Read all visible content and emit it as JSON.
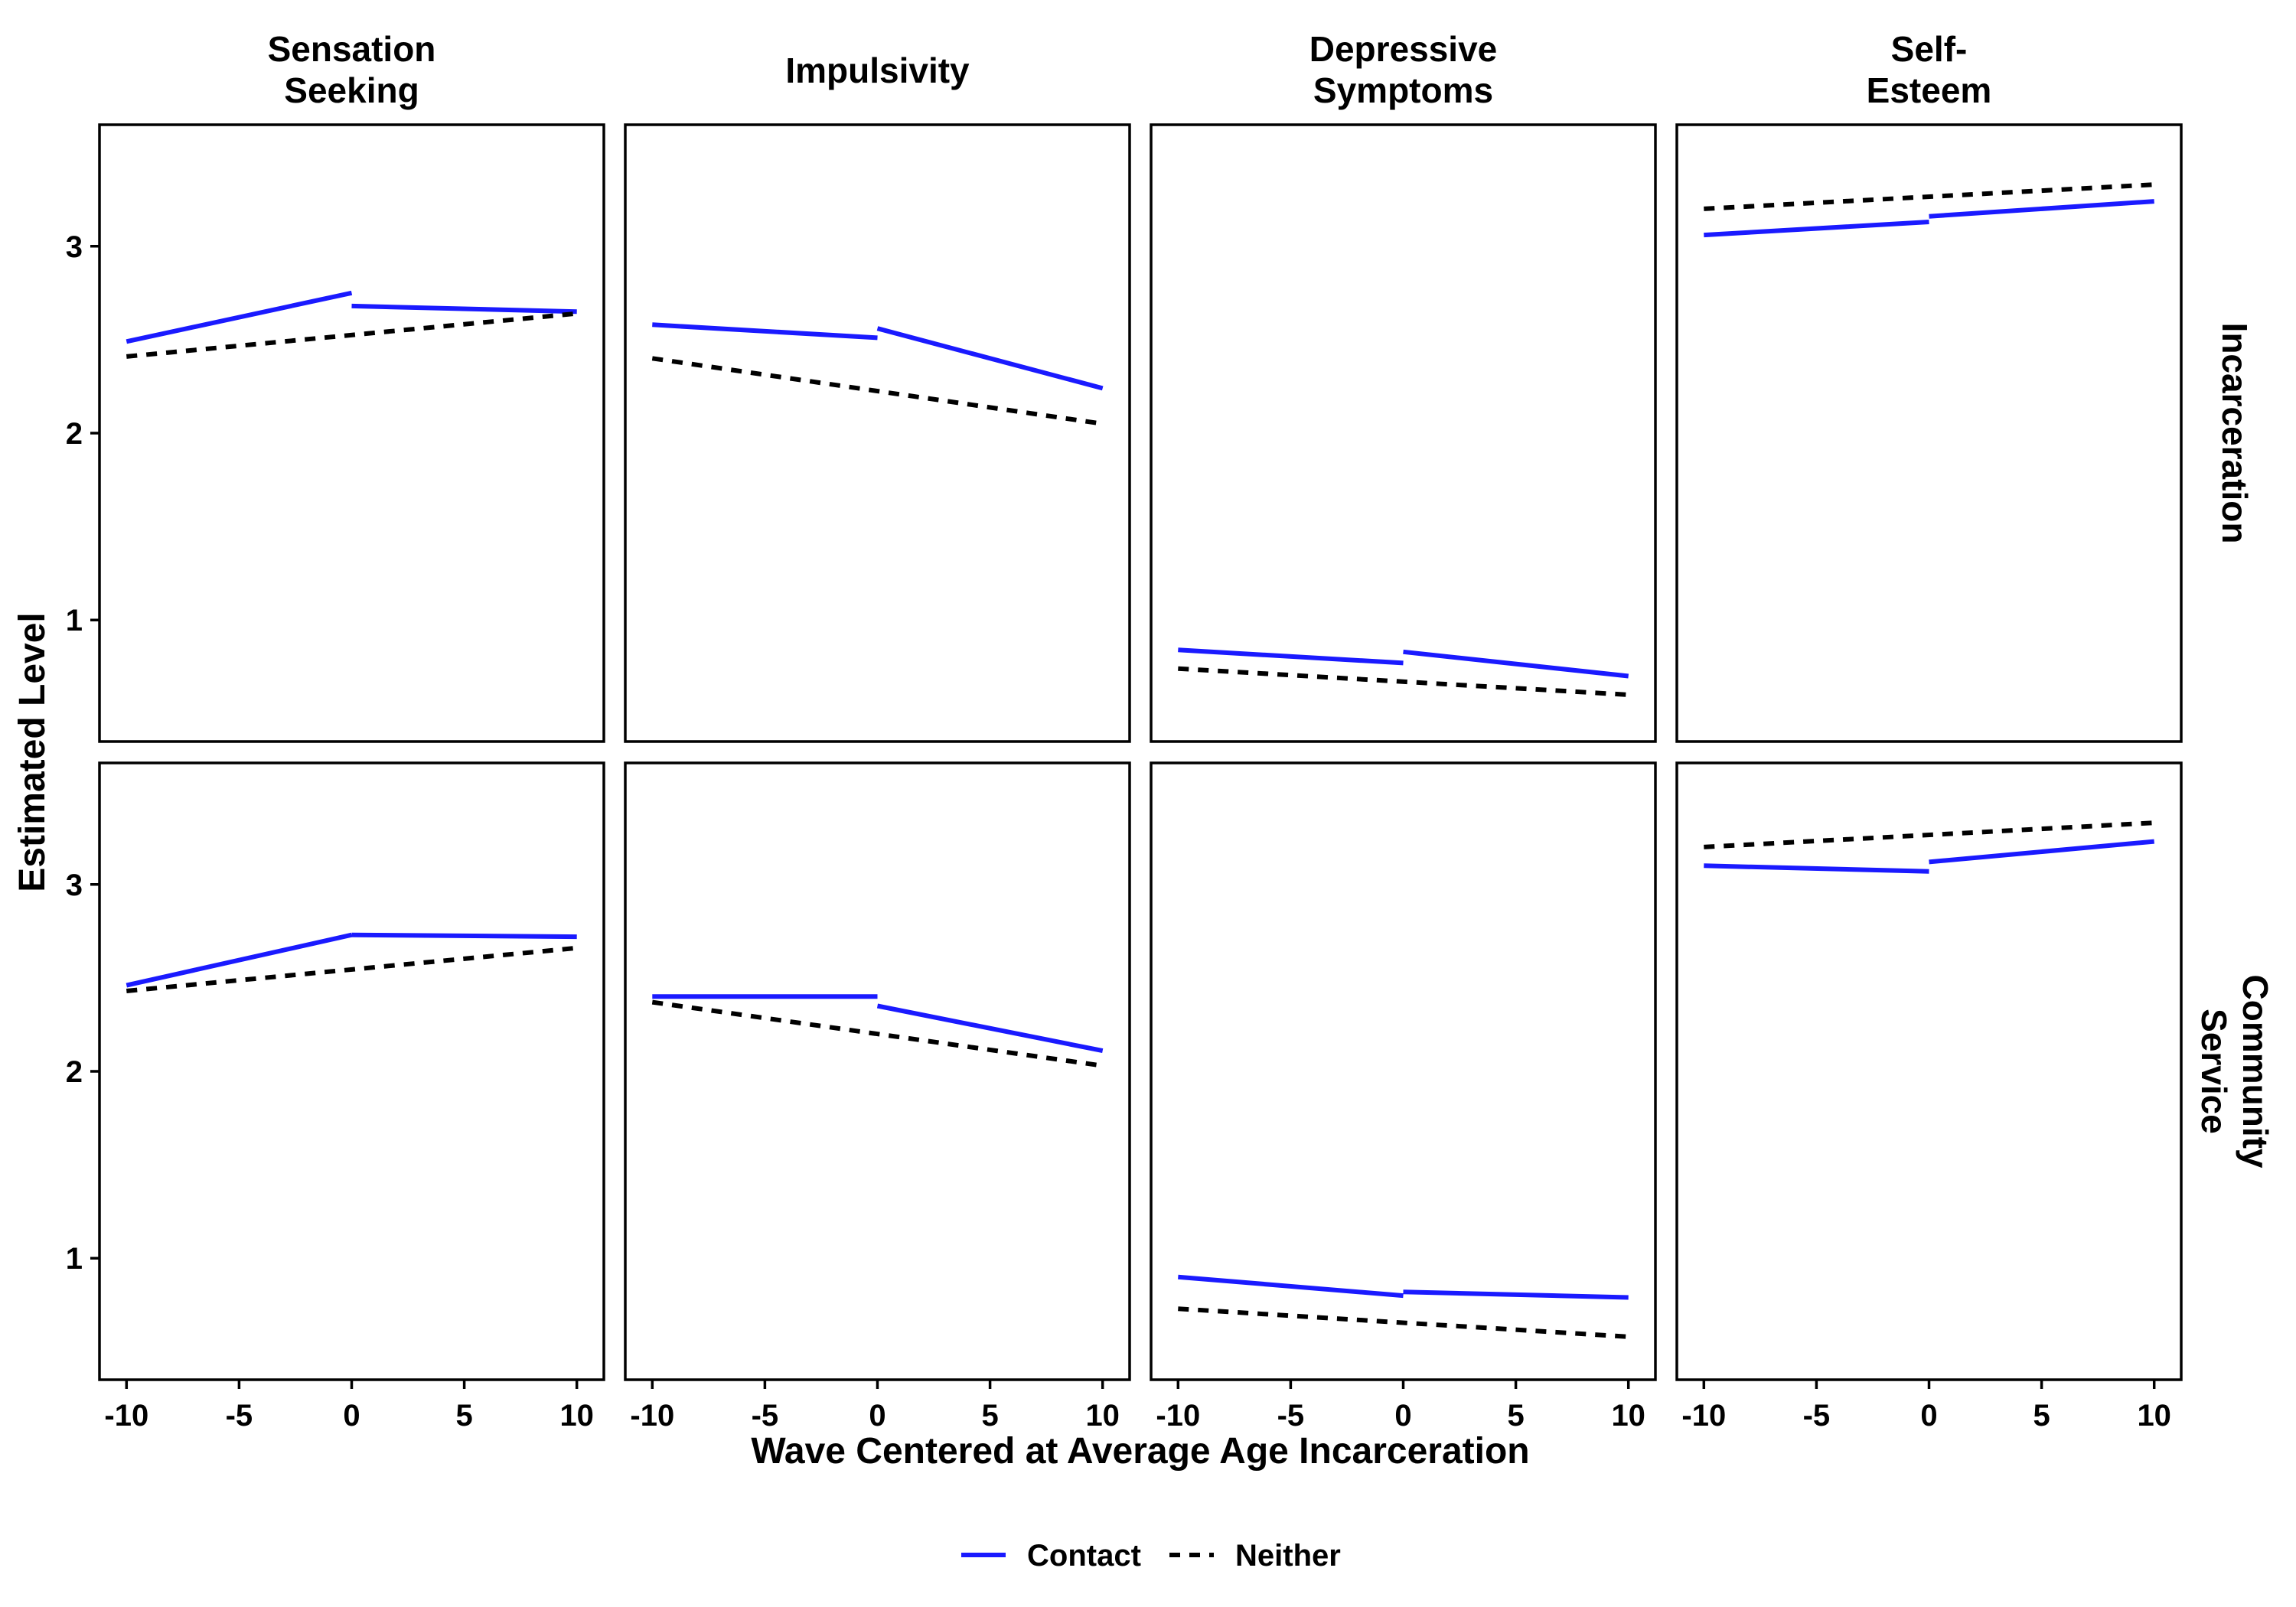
{
  "chart_data": {
    "type": "line",
    "facet_columns": [
      "Sensation\nSeeking",
      "Impulsivity",
      "Depressive\nSymptoms",
      "Self-\nEsteem"
    ],
    "facet_rows": [
      "Incarceration",
      "Community\nService"
    ],
    "xlabel": "Wave Centered at Average Age Incarceration",
    "ylabel": "Estimated Level",
    "xlim": [
      -11.2,
      11.2
    ],
    "ylim": [
      0.35,
      3.65
    ],
    "xticks": [
      -10,
      -5,
      0,
      5,
      10
    ],
    "xtick_labels": [
      "-10",
      "-5",
      "0",
      "5",
      "10"
    ],
    "yticks": [
      1,
      2,
      3
    ],
    "ytick_labels": [
      "1",
      "2",
      "3"
    ],
    "legend": {
      "position": "bottom",
      "entries": [
        {
          "label": "Contact",
          "color": "#1a1aff",
          "dash": "solid"
        },
        {
          "label": "Neither",
          "color": "#000000",
          "dash": "dashed"
        }
      ]
    },
    "grid": false,
    "panels": [
      {
        "row": 0,
        "col": 0,
        "series": [
          {
            "name": "Contact",
            "segments": [
              [
                [
                  -10,
                  2.49
                ],
                [
                  0,
                  2.75
                ]
              ],
              [
                [
                  0,
                  2.68
                ],
                [
                  10,
                  2.65
                ]
              ]
            ]
          },
          {
            "name": "Neither",
            "segments": [
              [
                [
                  -10,
                  2.41
                ],
                [
                  10,
                  2.64
                ]
              ]
            ]
          }
        ]
      },
      {
        "row": 0,
        "col": 1,
        "series": [
          {
            "name": "Contact",
            "segments": [
              [
                [
                  -10,
                  2.58
                ],
                [
                  0,
                  2.51
                ]
              ],
              [
                [
                  0,
                  2.56
                ],
                [
                  10,
                  2.24
                ]
              ]
            ]
          },
          {
            "name": "Neither",
            "segments": [
              [
                [
                  -10,
                  2.4
                ],
                [
                  10,
                  2.05
                ]
              ]
            ]
          }
        ]
      },
      {
        "row": 0,
        "col": 2,
        "series": [
          {
            "name": "Contact",
            "segments": [
              [
                [
                  -10,
                  0.84
                ],
                [
                  0,
                  0.77
                ]
              ],
              [
                [
                  0,
                  0.83
                ],
                [
                  10,
                  0.7
                ]
              ]
            ]
          },
          {
            "name": "Neither",
            "segments": [
              [
                [
                  -10,
                  0.74
                ],
                [
                  10,
                  0.6
                ]
              ]
            ]
          }
        ]
      },
      {
        "row": 0,
        "col": 3,
        "series": [
          {
            "name": "Contact",
            "segments": [
              [
                [
                  -10,
                  3.06
                ],
                [
                  0,
                  3.13
                ]
              ],
              [
                [
                  0,
                  3.16
                ],
                [
                  10,
                  3.24
                ]
              ]
            ]
          },
          {
            "name": "Neither",
            "segments": [
              [
                [
                  -10,
                  3.2
                ],
                [
                  10,
                  3.33
                ]
              ]
            ]
          }
        ]
      },
      {
        "row": 1,
        "col": 0,
        "series": [
          {
            "name": "Contact",
            "segments": [
              [
                [
                  -10,
                  2.46
                ],
                [
                  0,
                  2.73
                ]
              ],
              [
                [
                  0,
                  2.73
                ],
                [
                  10,
                  2.72
                ]
              ]
            ]
          },
          {
            "name": "Neither",
            "segments": [
              [
                [
                  -10,
                  2.43
                ],
                [
                  10,
                  2.66
                ]
              ]
            ]
          }
        ]
      },
      {
        "row": 1,
        "col": 1,
        "series": [
          {
            "name": "Contact",
            "segments": [
              [
                [
                  -10,
                  2.4
                ],
                [
                  0,
                  2.4
                ]
              ],
              [
                [
                  0,
                  2.35
                ],
                [
                  10,
                  2.11
                ]
              ]
            ]
          },
          {
            "name": "Neither",
            "segments": [
              [
                [
                  -10,
                  2.37
                ],
                [
                  10,
                  2.03
                ]
              ]
            ]
          }
        ]
      },
      {
        "row": 1,
        "col": 2,
        "series": [
          {
            "name": "Contact",
            "segments": [
              [
                [
                  -10,
                  0.9
                ],
                [
                  0,
                  0.8
                ]
              ],
              [
                [
                  0,
                  0.82
                ],
                [
                  10,
                  0.79
                ]
              ]
            ]
          },
          {
            "name": "Neither",
            "segments": [
              [
                [
                  -10,
                  0.73
                ],
                [
                  10,
                  0.58
                ]
              ]
            ]
          }
        ]
      },
      {
        "row": 1,
        "col": 3,
        "series": [
          {
            "name": "Contact",
            "segments": [
              [
                [
                  -10,
                  3.1
                ],
                [
                  0,
                  3.07
                ]
              ],
              [
                [
                  0,
                  3.12
                ],
                [
                  10,
                  3.23
                ]
              ]
            ]
          },
          {
            "name": "Neither",
            "segments": [
              [
                [
                  -10,
                  3.2
                ],
                [
                  10,
                  3.33
                ]
              ]
            ]
          }
        ]
      }
    ]
  }
}
